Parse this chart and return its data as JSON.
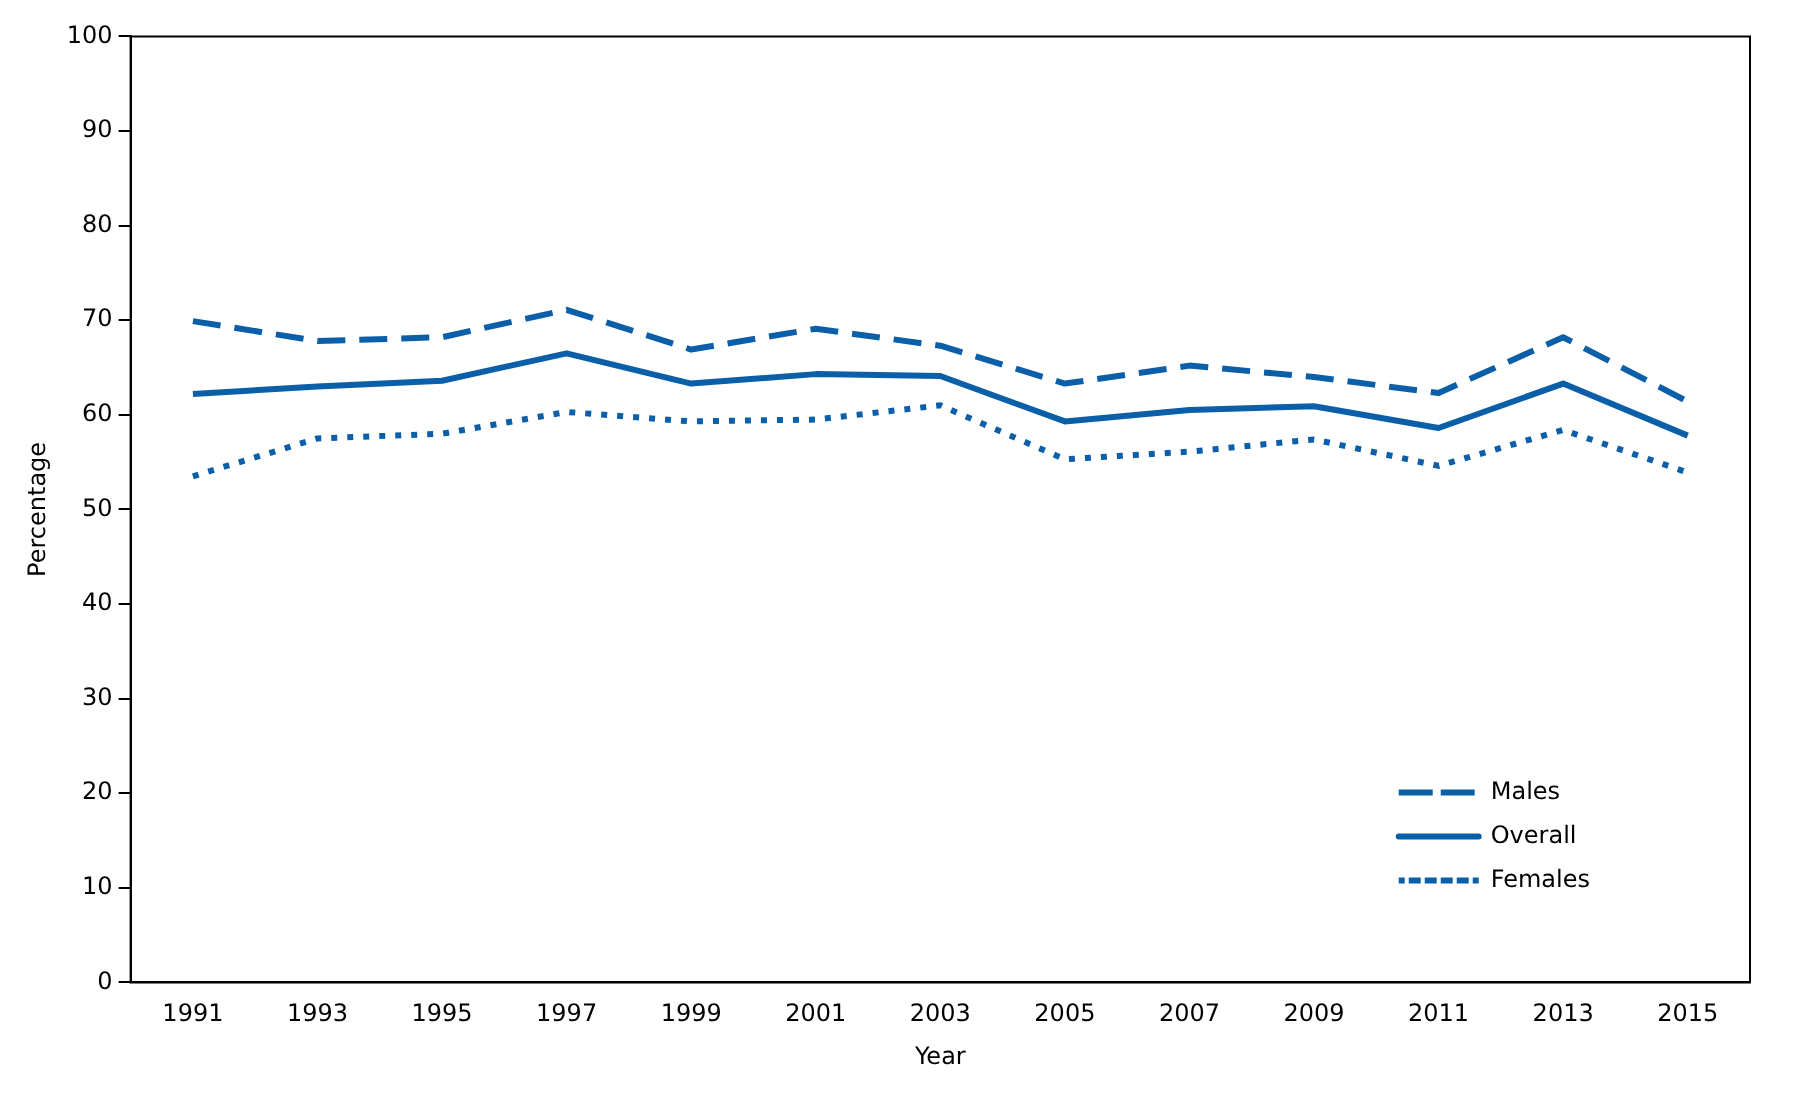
{
  "chart_data": {
    "type": "line",
    "xlabel": "Year",
    "ylabel": "Percentage",
    "categories": [
      "1991",
      "1993",
      "1995",
      "1997",
      "1999",
      "2001",
      "2003",
      "2005",
      "2007",
      "2009",
      "2011",
      "2013",
      "2015"
    ],
    "series": [
      {
        "name": "Males",
        "color": "#0a5fa8",
        "line_style": "dashed",
        "values": [
          69.9,
          67.8,
          68.2,
          71.1,
          66.9,
          69.1,
          67.3,
          63.3,
          65.2,
          64.0,
          62.3,
          68.2,
          61.4
        ]
      },
      {
        "name": "Overall",
        "color": "#0a5fa8",
        "line_style": "solid",
        "values": [
          62.2,
          63.0,
          63.6,
          66.5,
          63.3,
          64.3,
          64.1,
          59.3,
          60.5,
          60.9,
          58.6,
          63.3,
          57.8
        ]
      },
      {
        "name": "Females",
        "color": "#0a5fa8",
        "line_style": "dotted",
        "values": [
          53.5,
          57.5,
          58.0,
          60.3,
          59.3,
          59.5,
          61.0,
          55.3,
          56.1,
          57.4,
          54.6,
          58.4,
          53.9
        ]
      }
    ],
    "ylim": [
      0,
      100
    ],
    "yticks": [
      0,
      10,
      20,
      30,
      40,
      50,
      60,
      70,
      80,
      90,
      100
    ],
    "grid": false,
    "legend": "bottom right",
    "marker": "none"
  }
}
